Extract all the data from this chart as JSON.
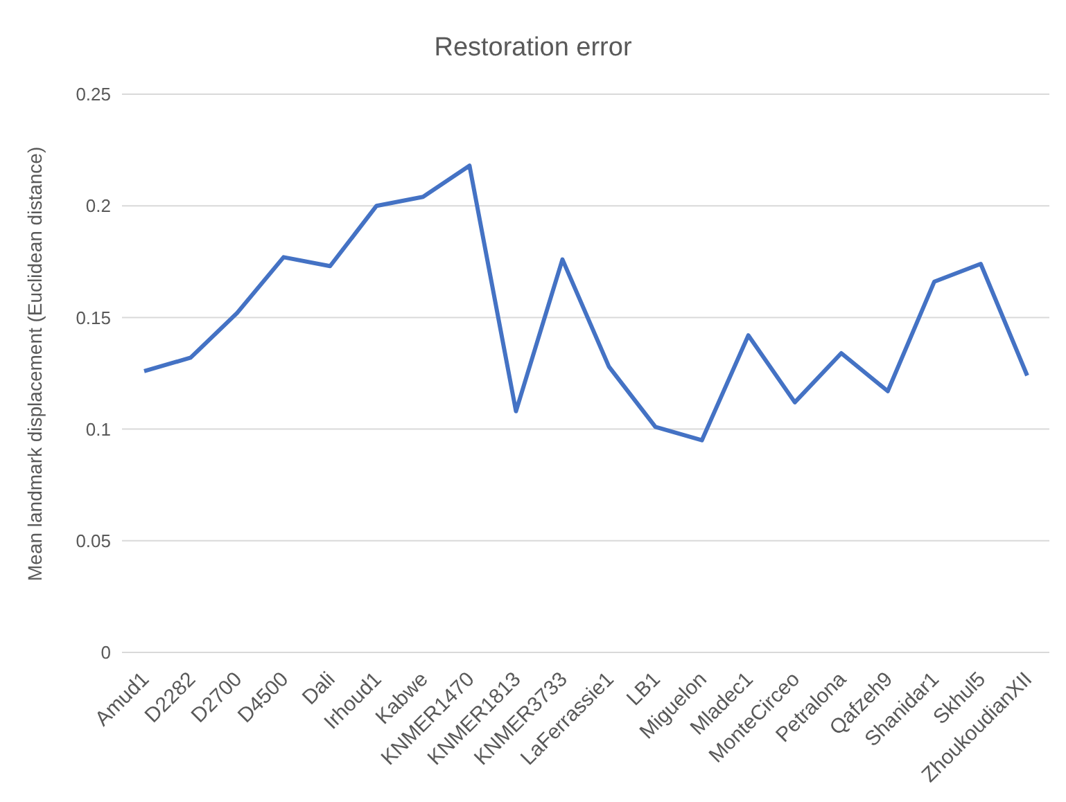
{
  "chart_data": {
    "type": "line",
    "title": "Restoration error",
    "ylabel": "Mean landmark displacement (Euclidean distance)",
    "categories": [
      "Amud1",
      "D2282",
      "D2700",
      "D4500",
      "Dali",
      "Irhoud1",
      "Kabwe",
      "KNMER1470",
      "KNMER1813",
      "KNMER3733",
      "LaFerrassie1",
      "LB1",
      "Miguelon",
      "Mladec1",
      "MonteCirceo",
      "Petralona",
      "Qafzeh9",
      "Shanidar1",
      "Skhul5",
      "ZhoukoudianXII"
    ],
    "series": [
      {
        "color": "#4472c4",
        "values": [
          0.126,
          0.132,
          0.152,
          0.177,
          0.173,
          0.2,
          0.204,
          0.218,
          0.108,
          0.176,
          0.128,
          0.101,
          0.095,
          0.142,
          0.112,
          0.134,
          0.117,
          0.166,
          0.174,
          0.124
        ]
      }
    ],
    "ylim": [
      0,
      0.25
    ],
    "yticks": [
      0,
      0.05,
      0.1,
      0.15,
      0.2,
      0.25
    ],
    "grid": "y",
    "legend": false,
    "marker": "none",
    "line_style": "solid"
  }
}
